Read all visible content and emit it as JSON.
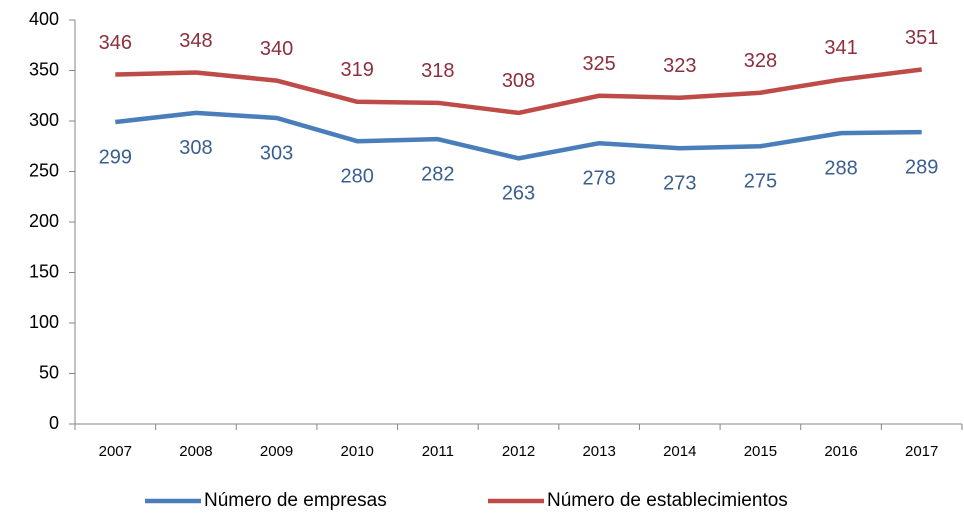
{
  "chart_data": {
    "type": "line",
    "categories": [
      "2007",
      "2008",
      "2009",
      "2010",
      "2011",
      "2012",
      "2013",
      "2014",
      "2015",
      "2016",
      "2017"
    ],
    "series": [
      {
        "name": "Número de empresas",
        "color": "#4a7ebb",
        "label_color": "#3a5f8f",
        "values": [
          299,
          308,
          303,
          280,
          282,
          263,
          278,
          273,
          275,
          288,
          289
        ]
      },
      {
        "name": "Número de establecimientos",
        "color": "#be4b48",
        "label_color": "#8e2f3e",
        "values": [
          346,
          348,
          340,
          319,
          318,
          308,
          325,
          323,
          328,
          341,
          351
        ]
      }
    ],
    "ylim": [
      0,
      400
    ],
    "yticks": [
      0,
      50,
      100,
      150,
      200,
      250,
      300,
      350,
      400
    ],
    "grid": false,
    "legend": "bottom"
  }
}
